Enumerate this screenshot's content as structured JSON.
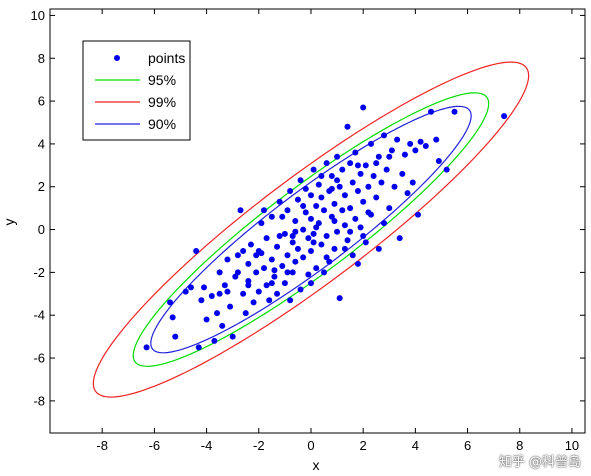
{
  "chart_data": {
    "type": "scatter",
    "title": "",
    "xlabel": "x",
    "ylabel": "y",
    "xlim": [
      -10,
      10.5
    ],
    "ylim": [
      -9.5,
      10.3
    ],
    "xticks": [
      -8,
      -6,
      -4,
      -2,
      0,
      2,
      4,
      6,
      8,
      10
    ],
    "yticks": [
      -8,
      -6,
      -4,
      -2,
      0,
      2,
      4,
      6,
      8,
      10
    ],
    "grid": false,
    "legend_position": "top-left",
    "colors": {
      "points": "#0000ee",
      "95%": "#00dd00",
      "99%": "#ee2222",
      "90%": "#2222dd"
    },
    "legend": [
      {
        "label": "points",
        "kind": "marker",
        "color": "#0000ee"
      },
      {
        "label": "95%",
        "kind": "line",
        "color": "#00dd00"
      },
      {
        "label": "99%",
        "kind": "line",
        "color": "#ee2222"
      },
      {
        "label": "90%",
        "kind": "line",
        "color": "#2222dd"
      }
    ],
    "ellipses": [
      {
        "label": "99%",
        "color": "#ee2222",
        "center": [
          0,
          0
        ],
        "semi_major": 11.2,
        "semi_minor": 2.3,
        "angle_deg": 43
      },
      {
        "label": "95%",
        "color": "#00dd00",
        "center": [
          0,
          0
        ],
        "semi_major": 9.15,
        "semi_minor": 1.85,
        "angle_deg": 43
      },
      {
        "label": "90%",
        "color": "#2222dd",
        "center": [
          0,
          0
        ],
        "semi_major": 8.25,
        "semi_minor": 1.65,
        "angle_deg": 43
      }
    ],
    "points": [
      [
        -6.3,
        -5.5
      ],
      [
        -5.4,
        -3.4
      ],
      [
        -5.2,
        -5.0
      ],
      [
        -5.3,
        -4.1
      ],
      [
        -4.8,
        -2.9
      ],
      [
        -4.6,
        -2.7
      ],
      [
        -4.4,
        -1.0
      ],
      [
        -4.3,
        -5.5
      ],
      [
        -4.1,
        -2.7
      ],
      [
        -4.0,
        -4.2
      ],
      [
        -3.8,
        -3.1
      ],
      [
        -3.7,
        -5.2
      ],
      [
        -3.6,
        -3.9
      ],
      [
        -3.5,
        -2.0
      ],
      [
        -3.4,
        -4.5
      ],
      [
        -3.3,
        -2.6
      ],
      [
        -3.2,
        -1.4
      ],
      [
        -3.1,
        -3.6
      ],
      [
        -3.0,
        -5.0
      ],
      [
        -2.9,
        -2.2
      ],
      [
        -2.8,
        -1.2
      ],
      [
        -2.7,
        0.9
      ],
      [
        -2.6,
        -3.0
      ],
      [
        -2.5,
        -3.9
      ],
      [
        -2.4,
        -2.4
      ],
      [
        -2.4,
        -1.6
      ],
      [
        -2.3,
        -0.7
      ],
      [
        -2.2,
        -3.4
      ],
      [
        -2.1,
        -2.0
      ],
      [
        -2.0,
        -1.0
      ],
      [
        -2.0,
        -2.9
      ],
      [
        -1.9,
        0.3
      ],
      [
        -1.8,
        -1.8
      ],
      [
        -1.7,
        -2.6
      ],
      [
        -1.7,
        -0.4
      ],
      [
        -1.6,
        -3.3
      ],
      [
        -1.5,
        -1.4
      ],
      [
        -1.5,
        0.6
      ],
      [
        -1.4,
        -2.2
      ],
      [
        -1.3,
        -0.8
      ],
      [
        -1.3,
        -3.0
      ],
      [
        -1.2,
        1.3
      ],
      [
        -1.1,
        -1.7
      ],
      [
        -1.0,
        -0.2
      ],
      [
        -1.0,
        -2.5
      ],
      [
        -0.9,
        0.9
      ],
      [
        -0.9,
        -1.2
      ],
      [
        -0.8,
        -3.3
      ],
      [
        -0.8,
        1.8
      ],
      [
        -0.7,
        -0.6
      ],
      [
        -0.7,
        -2.0
      ],
      [
        -0.6,
        0.4
      ],
      [
        -0.6,
        -1.5
      ],
      [
        -0.5,
        1.4
      ],
      [
        -0.5,
        -0.9
      ],
      [
        -0.4,
        2.3
      ],
      [
        -0.4,
        -2.8
      ],
      [
        -0.3,
        0.0
      ],
      [
        -0.3,
        -1.3
      ],
      [
        -0.2,
        0.8
      ],
      [
        -0.2,
        1.9
      ],
      [
        -0.1,
        -0.4
      ],
      [
        -0.1,
        -2.1
      ],
      [
        0.0,
        0.5
      ],
      [
        0.0,
        1.6
      ],
      [
        0.0,
        -1.0
      ],
      [
        0.1,
        2.8
      ],
      [
        0.1,
        -0.2
      ],
      [
        0.2,
        1.1
      ],
      [
        0.2,
        -1.8
      ],
      [
        0.3,
        0.3
      ],
      [
        0.3,
        2.1
      ],
      [
        0.4,
        -0.7
      ],
      [
        0.4,
        1.5
      ],
      [
        0.5,
        -2.0
      ],
      [
        0.5,
        0.9
      ],
      [
        0.6,
        3.1
      ],
      [
        0.6,
        -0.3
      ],
      [
        0.7,
        1.8
      ],
      [
        0.7,
        -1.5
      ],
      [
        0.8,
        0.6
      ],
      [
        0.8,
        2.5
      ],
      [
        0.9,
        -0.9
      ],
      [
        0.9,
        1.2
      ],
      [
        1.0,
        3.4
      ],
      [
        1.0,
        -0.1
      ],
      [
        1.1,
        2.0
      ],
      [
        1.1,
        -3.2
      ],
      [
        1.2,
        0.9
      ],
      [
        1.2,
        2.8
      ],
      [
        1.3,
        0.2
      ],
      [
        1.3,
        1.6
      ],
      [
        1.4,
        4.8
      ],
      [
        1.4,
        -0.5
      ],
      [
        1.5,
        3.1
      ],
      [
        1.5,
        1.0
      ],
      [
        1.6,
        2.2
      ],
      [
        1.6,
        -1.2
      ],
      [
        1.7,
        0.5
      ],
      [
        1.7,
        3.6
      ],
      [
        1.8,
        1.8
      ],
      [
        1.8,
        -1.6
      ],
      [
        1.9,
        2.6
      ],
      [
        1.9,
        0.1
      ],
      [
        2.0,
        5.7
      ],
      [
        2.0,
        1.3
      ],
      [
        2.1,
        3.0
      ],
      [
        2.1,
        -0.6
      ],
      [
        2.2,
        2.0
      ],
      [
        2.3,
        4.0
      ],
      [
        2.3,
        0.7
      ],
      [
        2.4,
        2.5
      ],
      [
        2.5,
        1.5
      ],
      [
        2.6,
        3.4
      ],
      [
        2.6,
        -0.9
      ],
      [
        2.7,
        2.2
      ],
      [
        2.8,
        4.4
      ],
      [
        2.8,
        0.3
      ],
      [
        2.9,
        2.8
      ],
      [
        3.0,
        1.0
      ],
      [
        3.1,
        3.7
      ],
      [
        3.2,
        2.0
      ],
      [
        3.3,
        4.2
      ],
      [
        3.4,
        -0.4
      ],
      [
        3.5,
        2.6
      ],
      [
        3.6,
        3.5
      ],
      [
        3.7,
        1.7
      ],
      [
        3.8,
        4.0
      ],
      [
        3.9,
        2.2
      ],
      [
        4.0,
        3.7
      ],
      [
        4.1,
        0.7
      ],
      [
        4.2,
        4.1
      ],
      [
        4.4,
        3.9
      ],
      [
        4.6,
        5.5
      ],
      [
        4.8,
        4.2
      ],
      [
        4.9,
        3.2
      ],
      [
        5.2,
        2.8
      ],
      [
        5.5,
        5.5
      ],
      [
        7.4,
        5.3
      ],
      [
        -2.6,
        -1.0
      ],
      [
        -1.9,
        -1.1
      ],
      [
        -1.2,
        -0.3
      ],
      [
        -0.6,
        -0.1
      ],
      [
        0.2,
        0.1
      ],
      [
        0.9,
        0.4
      ],
      [
        1.5,
        -0.1
      ],
      [
        2.2,
        0.8
      ],
      [
        -3.2,
        -2.9
      ],
      [
        -2.4,
        -2.6
      ],
      [
        -1.5,
        -2.5
      ],
      [
        -0.9,
        -2.0
      ],
      [
        0.0,
        -2.5
      ],
      [
        0.6,
        -1.3
      ],
      [
        1.3,
        -0.9
      ],
      [
        2.0,
        -0.3
      ],
      [
        -1.8,
        0.9
      ],
      [
        -1.1,
        0.6
      ],
      [
        -0.3,
        1.1
      ],
      [
        0.4,
        2.5
      ],
      [
        1.0,
        2.3
      ],
      [
        1.8,
        3.0
      ],
      [
        2.5,
        3.1
      ],
      [
        3.0,
        3.4
      ],
      [
        -4.2,
        -3.3
      ],
      [
        -3.5,
        -3.0
      ],
      [
        -2.8,
        -2.0
      ],
      [
        -2.1,
        -1.2
      ],
      [
        -1.4,
        -1.9
      ],
      [
        -0.7,
        -0.3
      ],
      [
        0.1,
        -0.6
      ],
      [
        0.8,
        1.9
      ]
    ]
  }
}
